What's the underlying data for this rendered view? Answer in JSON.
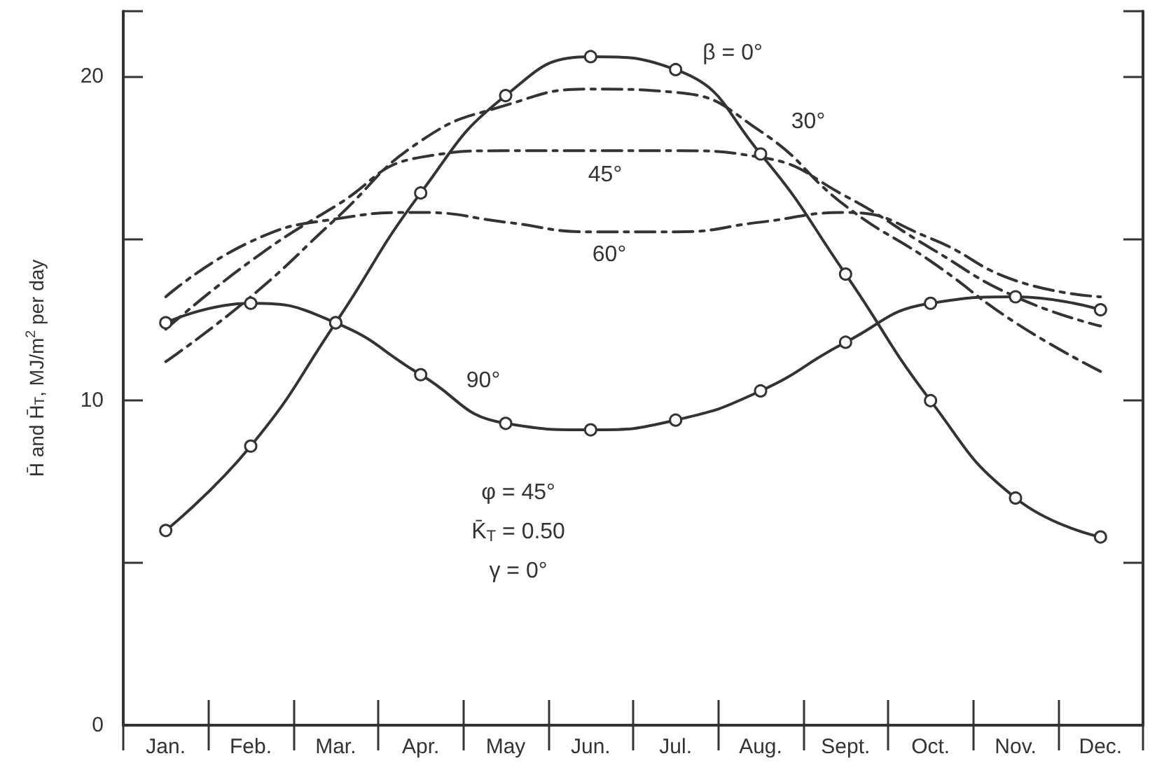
{
  "chart_data": {
    "type": "line",
    "ylabel": "H̄ and H̄$_{T}$, MJ/m$^{2}$ per day",
    "categories": [
      "Jan.",
      "Feb.",
      "Mar.",
      "Apr.",
      "May",
      "Jun.",
      "Jul.",
      "Aug.",
      "Sept.",
      "Oct.",
      "Nov.",
      "Dec."
    ],
    "series": [
      {
        "color": "#333333",
        "marker": "circle",
        "line_style": "solid",
        "values": [
          6.0,
          8.6,
          12.4,
          16.4,
          19.4,
          20.6,
          20.2,
          17.6,
          13.9,
          10.0,
          7.0,
          5.8
        ]
      },
      {
        "color": "#333333",
        "marker": "none",
        "line_style": "dashed",
        "values": [
          11.2,
          13.2,
          15.6,
          18.0,
          19.1,
          19.6,
          19.5,
          18.3,
          16.0,
          14.3,
          12.4,
          10.9
        ]
      },
      {
        "color": "#333333",
        "marker": "none",
        "line_style": "dashed",
        "values": [
          12.2,
          14.3,
          16.0,
          17.5,
          17.7,
          17.7,
          17.7,
          17.5,
          16.3,
          14.7,
          13.2,
          12.3
        ]
      },
      {
        "color": "#333333",
        "marker": "none",
        "line_style": "dashed",
        "values": [
          13.2,
          14.9,
          15.6,
          15.8,
          15.5,
          15.2,
          15.2,
          15.5,
          15.8,
          15.0,
          13.7,
          13.2
        ]
      },
      {
        "color": "#333333",
        "marker": "circle",
        "line_style": "solid",
        "values": [
          12.4,
          13.0,
          12.4,
          10.8,
          9.3,
          9.1,
          9.4,
          10.3,
          11.8,
          13.0,
          13.2,
          12.8
        ]
      }
    ],
    "ylim": [
      0,
      22
    ],
    "yticks": [
      0,
      {
        "value": 5,
        "label": null
      },
      10,
      {
        "value": 15,
        "label": null
      },
      20
    ],
    "grid": false,
    "annotations": [
      "β = 0°",
      "30°",
      "45°",
      "60°",
      "90°",
      "φ = 45°",
      "K̄$_{T}$ = 0.50",
      "γ = 0°"
    ]
  }
}
